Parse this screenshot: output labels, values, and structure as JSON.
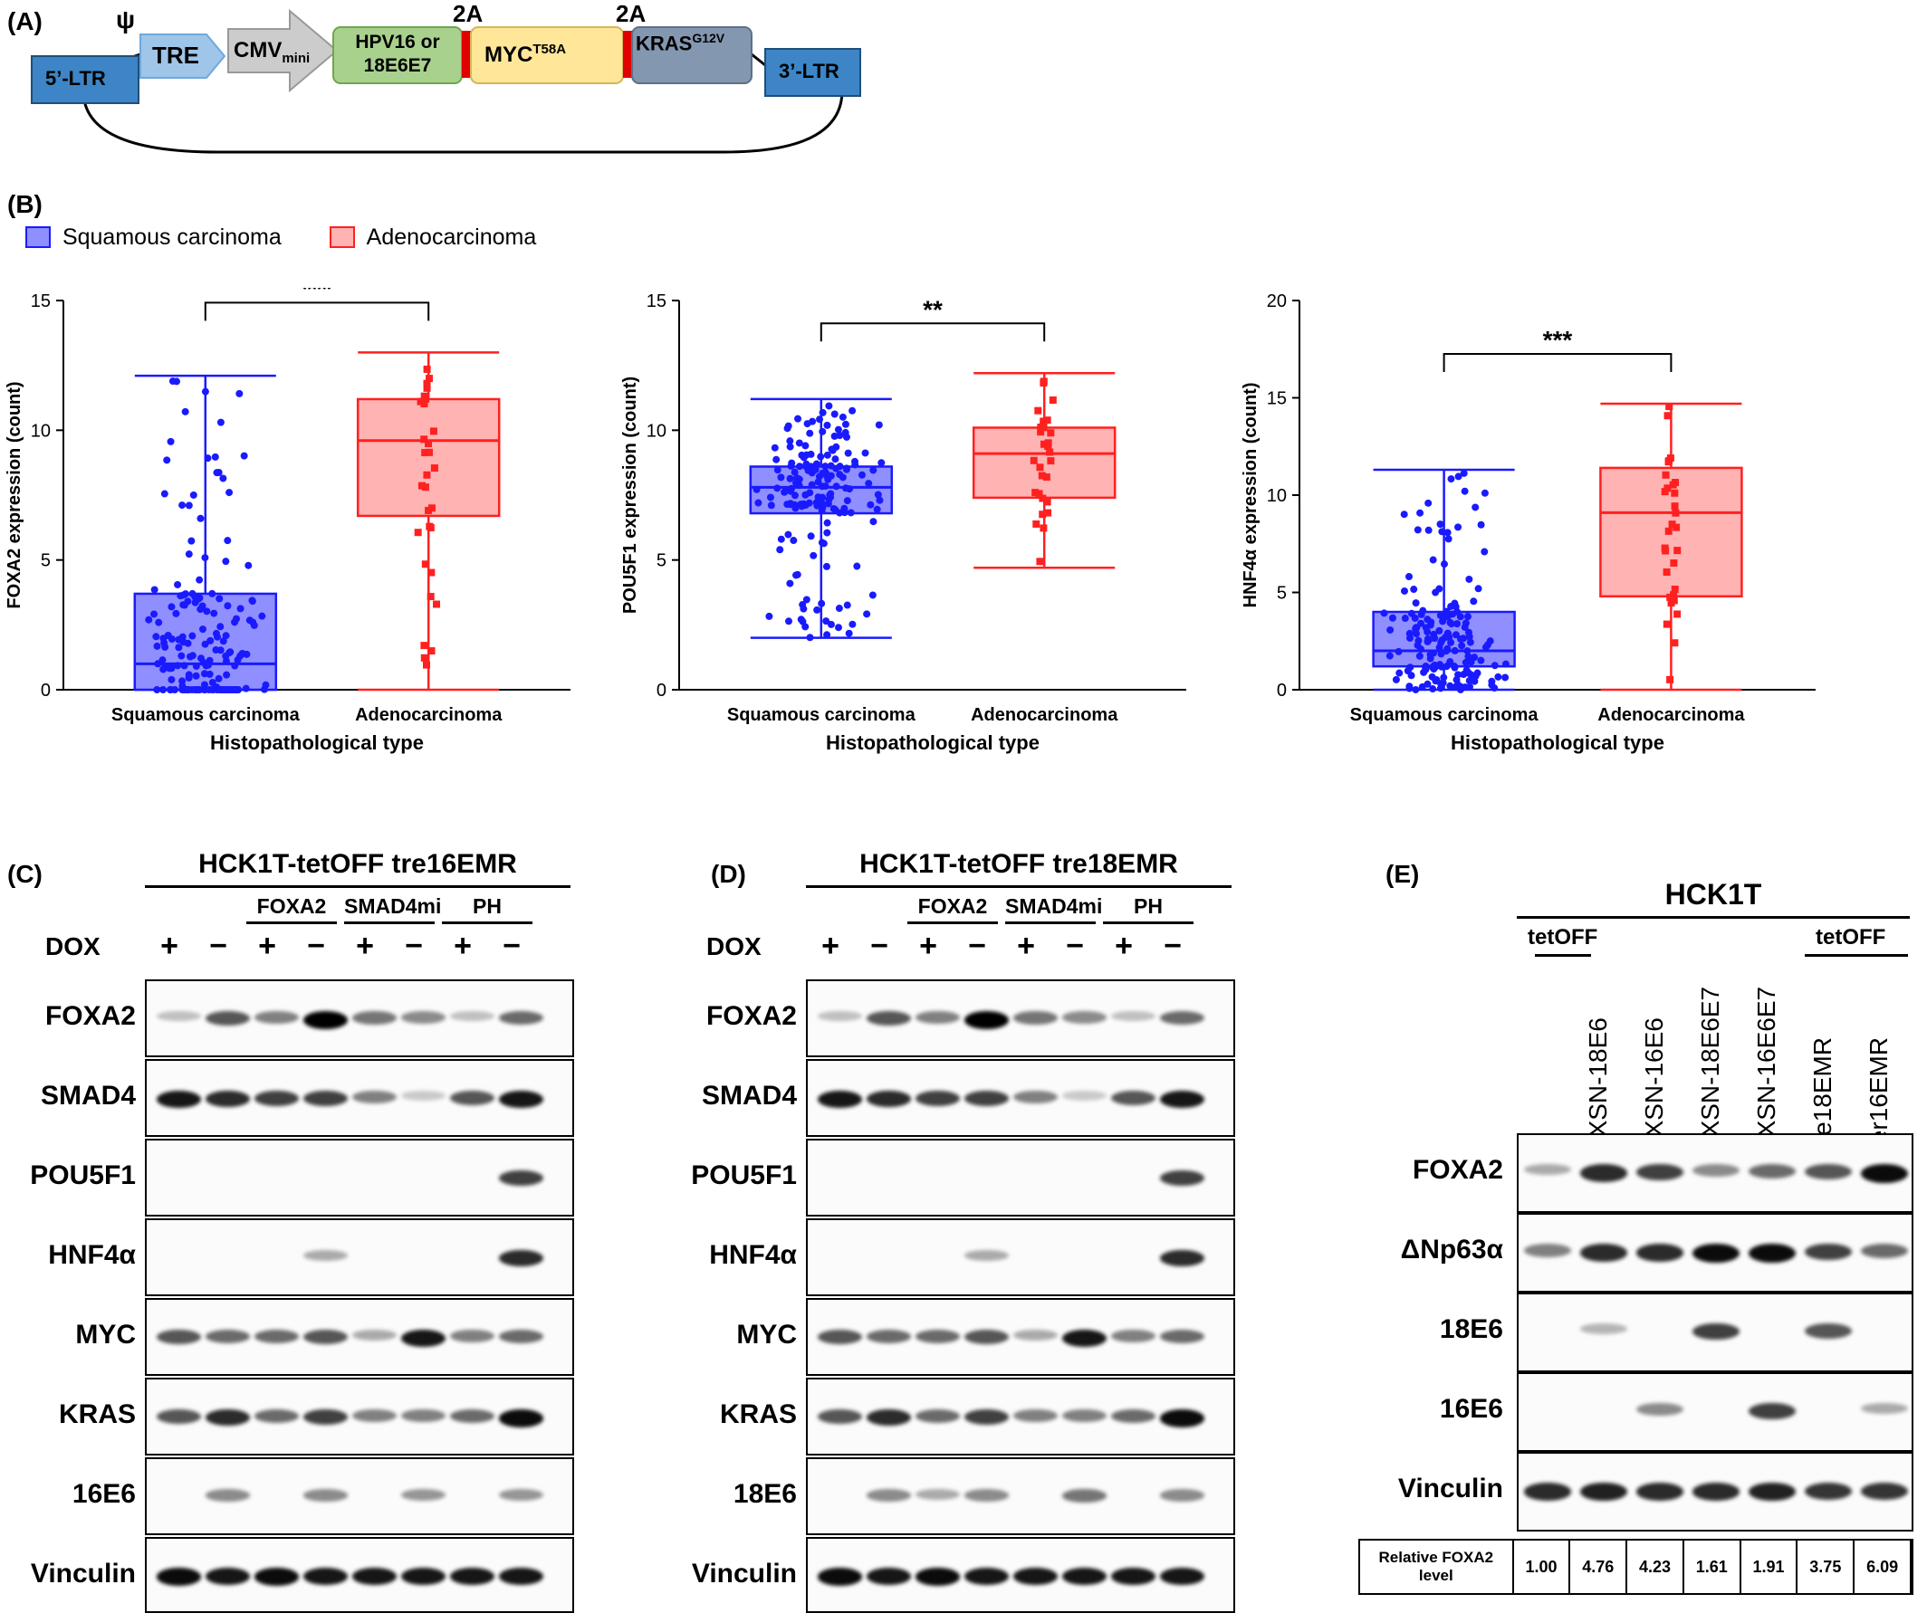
{
  "panels": {
    "A": "(A)",
    "B": "(B)",
    "C": "(C)",
    "D": "(D)",
    "E": "(E)"
  },
  "construct": {
    "psi": "ψ",
    "ltr5": "5’-LTR",
    "ltr3": "3’-LTR",
    "tre": "TRE",
    "cmv": "CMV",
    "cmv_sub": "mini",
    "hpv_line1": "HPV16 or",
    "hpv_line2": "18E6E7",
    "myc": "MYC",
    "myc_sup": "T58A",
    "kras": "KRAS",
    "kras_sup": "G12V",
    "p2a_1": "2A",
    "p2a_2": "2A",
    "colors": {
      "ltr": "#3d85c6",
      "tre": "#9fc5e8",
      "cmv": "#cccccc",
      "hpv": "#a9d18e",
      "myc": "#ffe699",
      "kras": "#8497b0",
      "linker": "#e00000"
    }
  },
  "legend": {
    "squamous": "Squamous carcinoma",
    "adeno": "Adenocarcinoma",
    "colors": {
      "squamous": "#1a1aff",
      "adeno": "#ff2020"
    }
  },
  "chart_data": [
    {
      "type": "box",
      "ylabel": "FOXA2 expression (count)",
      "xlabel": "Histopathological type",
      "categories": [
        "Squamous carcinoma",
        "Adenocarcinoma"
      ],
      "ylim": [
        0,
        15
      ],
      "yticks": [
        0,
        5,
        10,
        15
      ],
      "significance": "***",
      "series": [
        {
          "name": "Squamous carcinoma",
          "min": 0,
          "q1": 0,
          "median": 1.0,
          "q3": 3.7,
          "max": 12.1
        },
        {
          "name": "Adenocarcinoma",
          "min": 0,
          "q1": 6.7,
          "median": 9.6,
          "q3": 11.2,
          "max": 13.0
        }
      ]
    },
    {
      "type": "box",
      "ylabel": "POU5F1 expression (count)",
      "xlabel": "Histopathological type",
      "categories": [
        "Squamous carcinoma",
        "Adenocarcinoma"
      ],
      "ylim": [
        0,
        15
      ],
      "yticks": [
        0,
        5,
        10,
        15
      ],
      "significance": "**",
      "series": [
        {
          "name": "Squamous carcinoma",
          "min": 2.0,
          "q1": 6.8,
          "median": 7.8,
          "q3": 8.6,
          "max": 11.2
        },
        {
          "name": "Adenocarcinoma",
          "min": 4.7,
          "q1": 7.4,
          "median": 9.1,
          "q3": 10.1,
          "max": 12.2
        }
      ]
    },
    {
      "type": "box",
      "ylabel": "HNF4α expression (count)",
      "xlabel": "Histopathological type",
      "categories": [
        "Squamous carcinoma",
        "Adenocarcinoma"
      ],
      "ylim": [
        0,
        20
      ],
      "yticks": [
        0,
        5,
        10,
        15,
        20
      ],
      "significance": "***",
      "series": [
        {
          "name": "Squamous carcinoma",
          "min": 0,
          "q1": 1.2,
          "median": 2.0,
          "q3": 4.0,
          "max": 11.3
        },
        {
          "name": "Adenocarcinoma",
          "min": 0,
          "q1": 4.8,
          "median": 9.1,
          "q3": 11.4,
          "max": 14.7
        }
      ]
    }
  ],
  "blotC": {
    "title": "HCK1T-tetOFF tre16EMR",
    "groups": [
      "FOXA2",
      "SMAD4mi",
      "PH"
    ],
    "dox_label": "DOX",
    "signs": [
      "+",
      "−",
      "+",
      "−",
      "+",
      "−",
      "+",
      "−"
    ],
    "rows": [
      "FOXA2",
      "SMAD4",
      "POU5F1",
      "HNF4α",
      "MYC",
      "KRAS",
      "16E6",
      "Vinculin"
    ]
  },
  "blotD": {
    "title": "HCK1T-tetOFF tre18EMR",
    "groups": [
      "FOXA2",
      "SMAD4mi",
      "PH"
    ],
    "dox_label": "DOX",
    "signs": [
      "+",
      "−",
      "+",
      "−",
      "+",
      "−",
      "+",
      "−"
    ],
    "rows": [
      "FOXA2",
      "SMAD4",
      "POU5F1",
      "HNF4α",
      "MYC",
      "KRAS",
      "18E6",
      "Vinculin"
    ]
  },
  "blotE": {
    "title": "HCK1T",
    "tetoff_left": "tetOFF",
    "tetoff_right": "tetOFF",
    "lanes": [
      "LXSN-18E6",
      "LXSN-16E6",
      "LXSN-18E6E7",
      "LXSN-16E6E7",
      "tre18EMR",
      "ter16EMR"
    ],
    "rows": [
      "FOXA2",
      "ΔNp63α",
      "18E6",
      "16E6",
      "Vinculin"
    ],
    "quant_label": "Relative FOXA2 level",
    "quant_values": [
      "1.00",
      "4.76",
      "4.23",
      "1.61",
      "1.91",
      "3.75",
      "6.09"
    ]
  }
}
